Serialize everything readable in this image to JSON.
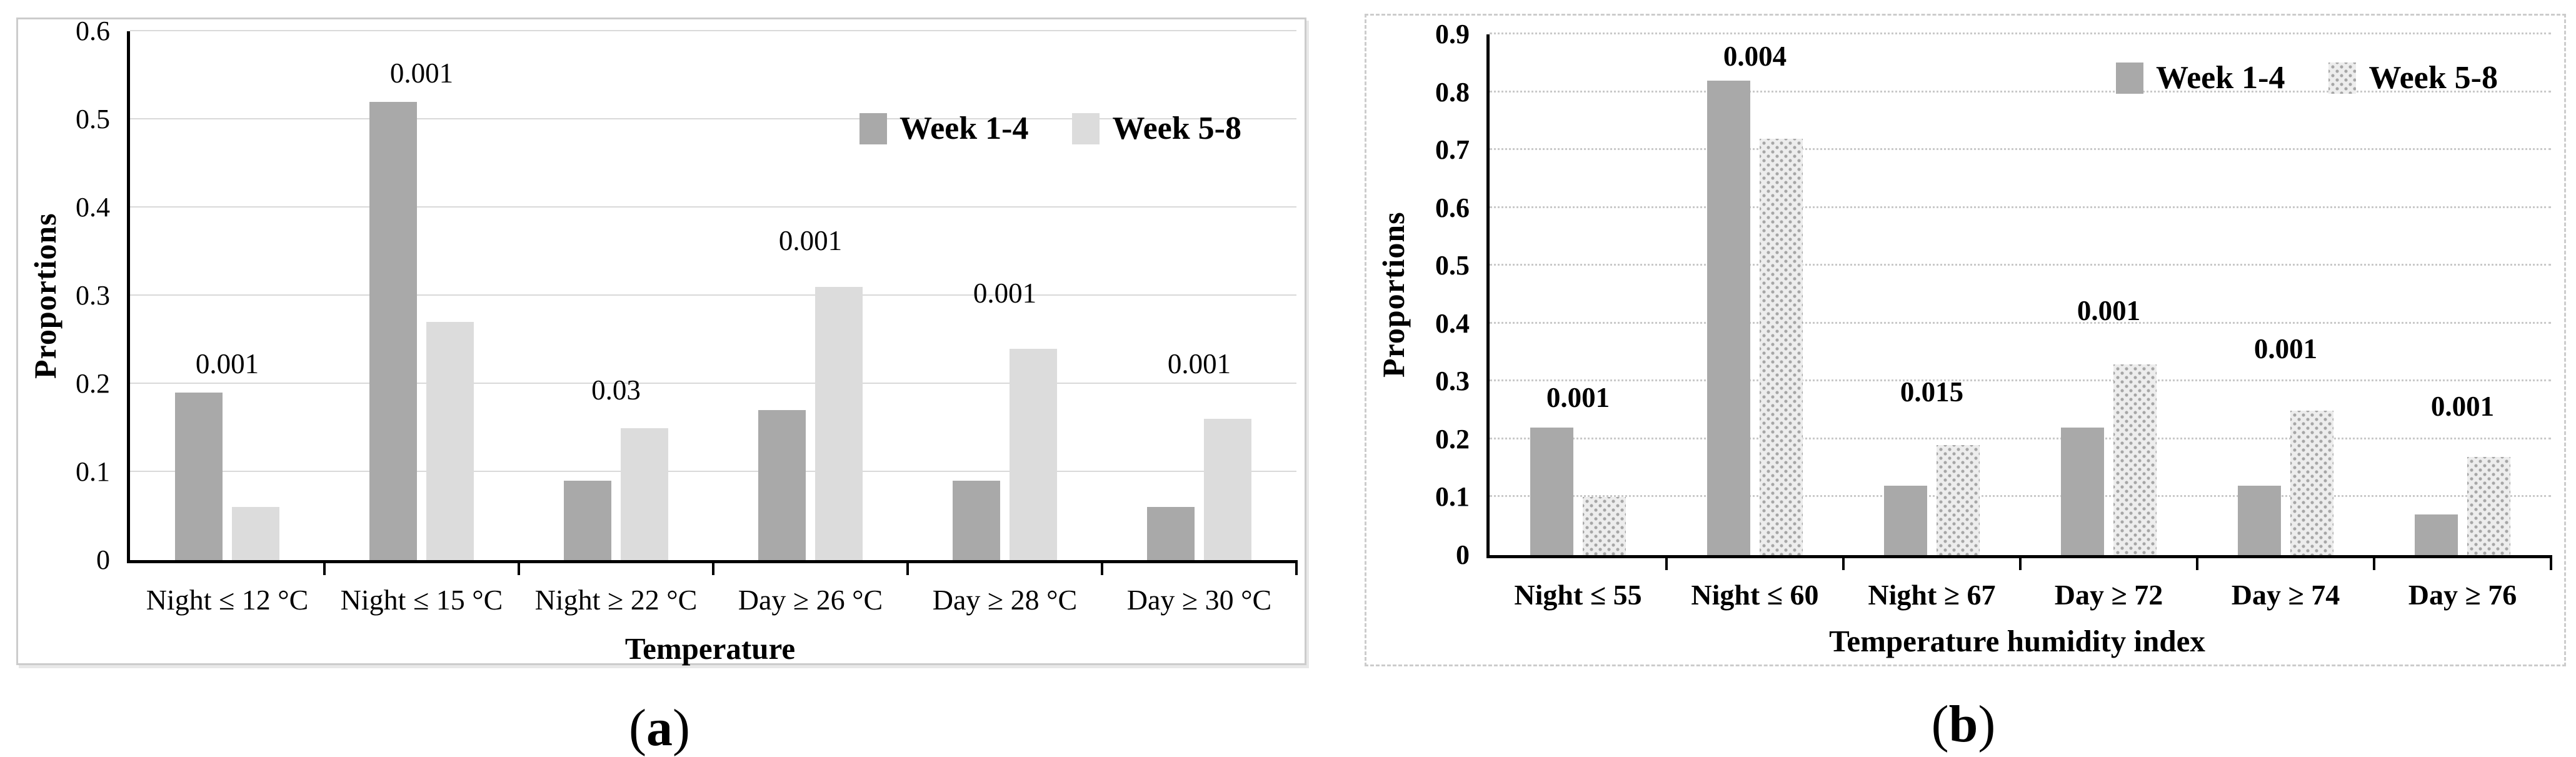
{
  "colors": {
    "week_1_4_bar": "#a9a9a9",
    "week_5_8_bar_solid": "#dcdcdc",
    "week_5_8_dot": "#a6a6a6",
    "axis": "#000000",
    "grid_solid": "#d9d9d9",
    "grid_dotted": "#c9c9c9",
    "panel_border": "#cccccc",
    "text": "#000000"
  },
  "chart_data": [
    {
      "panel": "a",
      "type": "bar",
      "title": "",
      "ylabel": "Proportions",
      "xlabel": "Temperature",
      "ylim": [
        0,
        0.6
      ],
      "ytick_step": 0.1,
      "ytick_labels": [
        "0",
        "0.1",
        "0.2",
        "0.3",
        "0.4",
        "0.5",
        "0.6"
      ],
      "grid": "solid",
      "legend_position": "top-right",
      "categories": [
        "Night ≤ 12 °C",
        "Night ≤ 15 °C",
        "Night ≥ 22 °C",
        "Day ≥ 26 °C",
        "Day ≥ 28 °C",
        "Day ≥ 30 °C"
      ],
      "series": [
        {
          "name": "Week 1-4",
          "pattern": "solid-dark",
          "values": [
            0.19,
            0.52,
            0.09,
            0.17,
            0.09,
            0.06
          ]
        },
        {
          "name": "Week 5-8",
          "pattern": "solid-light",
          "values": [
            0.06,
            0.27,
            0.15,
            0.31,
            0.24,
            0.16
          ]
        }
      ],
      "annotations": [
        {
          "text": "0.001",
          "y": 0.205
        },
        {
          "text": "0.001",
          "y": 0.535
        },
        {
          "text": "0.03",
          "y": 0.175
        },
        {
          "text": "0.001",
          "y": 0.345
        },
        {
          "text": "0.001",
          "y": 0.285
        },
        {
          "text": "0.001",
          "y": 0.205
        }
      ],
      "caption": {
        "open": "(",
        "letter": "a",
        "close": ")"
      }
    },
    {
      "panel": "b",
      "type": "bar",
      "title": "",
      "ylabel": "Proportions",
      "xlabel": "Temperature humidity index",
      "ylim": [
        0,
        0.9
      ],
      "ytick_step": 0.1,
      "ytick_labels": [
        "0",
        "0.1",
        "0.2",
        "0.3",
        "0.4",
        "0.5",
        "0.6",
        "0.7",
        "0.8",
        "0.9"
      ],
      "grid": "dotted",
      "legend_position": "top-right",
      "categories": [
        "Night ≤ 55",
        "Night ≤ 60",
        "Night ≥ 67",
        "Day ≥ 72",
        "Day ≥ 74",
        "Day ≥ 76"
      ],
      "series": [
        {
          "name": "Week 1-4",
          "pattern": "solid-dark",
          "values": [
            0.22,
            0.82,
            0.12,
            0.22,
            0.12,
            0.07
          ]
        },
        {
          "name": "Week 5-8",
          "pattern": "dotted",
          "values": [
            0.1,
            0.72,
            0.19,
            0.33,
            0.25,
            0.17
          ]
        }
      ],
      "annotations": [
        {
          "text": "0.001",
          "y": 0.245
        },
        {
          "text": "0.004",
          "y": 0.835
        },
        {
          "text": "0.015",
          "y": 0.255
        },
        {
          "text": "0.001",
          "y": 0.395
        },
        {
          "text": "0.001",
          "y": 0.33
        },
        {
          "text": "0.001",
          "y": 0.23
        }
      ],
      "caption": {
        "open": "(",
        "letter": "b",
        "close": ")"
      }
    }
  ]
}
